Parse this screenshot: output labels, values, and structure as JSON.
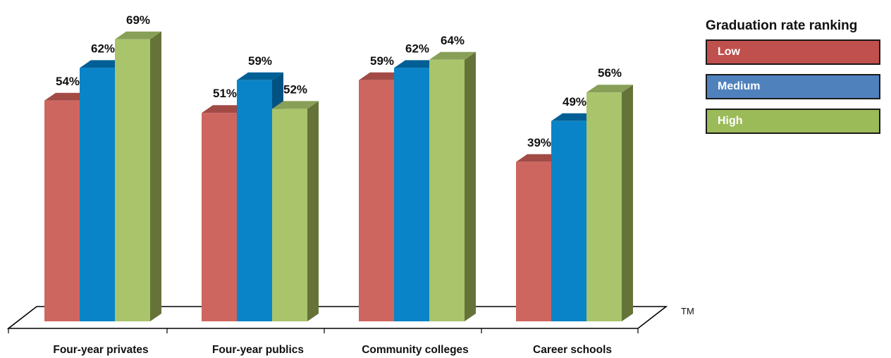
{
  "chart_data": {
    "type": "bar",
    "categories": [
      "Four-year privates",
      "Four-year publics",
      "Community colleges",
      "Career schools"
    ],
    "series": [
      {
        "name": "Low",
        "values": [
          54,
          51,
          59,
          39
        ],
        "labels": [
          "54%",
          "51%",
          "59%",
          "39%"
        ]
      },
      {
        "name": "Medium",
        "values": [
          62,
          59,
          62,
          49
        ],
        "labels": [
          "62%",
          "59%",
          "62%",
          "49%"
        ]
      },
      {
        "name": "High",
        "values": [
          69,
          52,
          64,
          56
        ],
        "labels": [
          "69%",
          "52%",
          "64%",
          "56%"
        ]
      }
    ],
    "legend_title": "Graduation rate ranking",
    "legend_placement": "top-right",
    "trademark": "TM",
    "grid": false,
    "colors": {
      "Low": {
        "front": "#CE6660",
        "top": "#A24A45",
        "legend": "#C0504D"
      },
      "Medium": {
        "front": "#0A84C8",
        "top": "#006096",
        "side": "#005282",
        "legend": "#4F81BD"
      },
      "High": {
        "front": "#A9C46A",
        "top": "#889F58",
        "side": "#657339",
        "legend": "#9BBB59"
      }
    }
  }
}
